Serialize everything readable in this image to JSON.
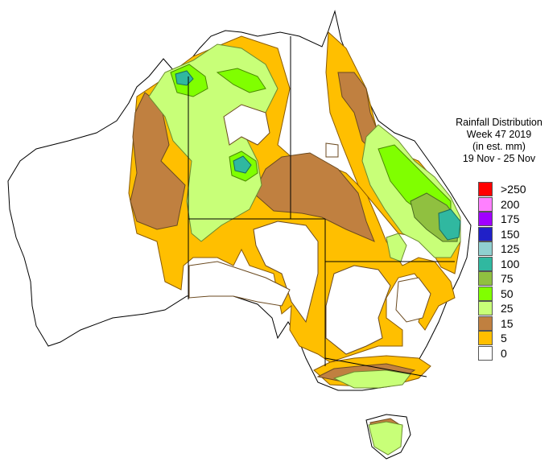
{
  "title": {
    "line1": "Rainfall Distribution",
    "line2": "Week 47 2019",
    "line3": "(in est. mm)",
    "line4": "19 Nov - 25 Nov"
  },
  "legend": [
    {
      "label": ">250",
      "color": "#ff0000"
    },
    {
      "label": "200",
      "color": "#ff80ff"
    },
    {
      "label": "175",
      "color": "#a000ff"
    },
    {
      "label": "150",
      "color": "#2020c8"
    },
    {
      "label": "125",
      "color": "#90d0d0"
    },
    {
      "label": "100",
      "color": "#30b8a0"
    },
    {
      "label": "75",
      "color": "#90c040"
    },
    {
      "label": "50",
      "color": "#80ff00"
    },
    {
      "label": "25",
      "color": "#c8ff78"
    },
    {
      "label": "15",
      "color": "#c08040"
    },
    {
      "label": "5",
      "color": "#ffbf00"
    },
    {
      "label": "0",
      "color": "#ffffff"
    }
  ]
}
